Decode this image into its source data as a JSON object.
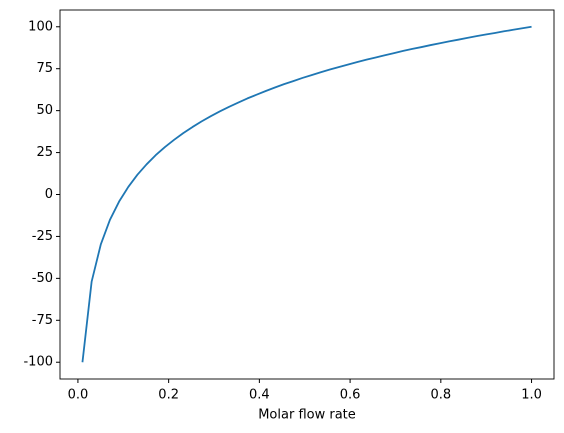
{
  "chart_data": {
    "type": "line",
    "xlabel": "Molar flow rate",
    "x": [
      0.01,
      0.0302,
      0.0504,
      0.0706,
      0.0908,
      0.111,
      0.1312,
      0.1514,
      0.1716,
      0.1918,
      0.212,
      0.2322,
      0.2524,
      0.2727,
      0.2929,
      0.3131,
      0.3333,
      0.3535,
      0.3737,
      0.3939,
      0.4141,
      0.4343,
      0.4545,
      0.4747,
      0.4949,
      0.5151,
      0.5353,
      0.5555,
      0.5757,
      0.5959,
      0.6161,
      0.6363,
      0.6565,
      0.6767,
      0.6969,
      0.7171,
      0.7373,
      0.7576,
      0.7778,
      0.798,
      0.8182,
      0.8384,
      0.8586,
      0.8788,
      0.899,
      0.9192,
      0.9394,
      0.9596,
      0.9798,
      1.0
    ],
    "series": [
      {
        "color": "#1f77b4",
        "values": [
          -100,
          -52.0,
          -29.8,
          -15.1,
          -4.2,
          4.5,
          11.8,
          18.0,
          23.5,
          28.3,
          32.6,
          36.6,
          40.2,
          43.6,
          46.7,
          49.6,
          52.3,
          54.8,
          57.3,
          59.5,
          61.7,
          63.8,
          65.8,
          67.6,
          69.5,
          71.2,
          72.9,
          74.5,
          76.0,
          77.5,
          79.0,
          80.4,
          81.7,
          83.0,
          84.3,
          85.6,
          86.8,
          87.9,
          89.1,
          90.2,
          91.3,
          92.3,
          93.4,
          94.4,
          95.4,
          96.3,
          97.3,
          98.2,
          99.1,
          100
        ]
      }
    ],
    "xlim": [
      -0.0395,
      1.0495
    ],
    "xticks": [
      {
        "value": 0,
        "label": "0.0"
      },
      0.2,
      0.4,
      0.6,
      0.8,
      {
        "value": 1,
        "label": "1.0"
      }
    ],
    "ylim": [
      -110,
      110
    ],
    "yticks": [
      -100,
      -75,
      -50,
      -25,
      0,
      25,
      50,
      75,
      100
    ],
    "grid": false
  }
}
